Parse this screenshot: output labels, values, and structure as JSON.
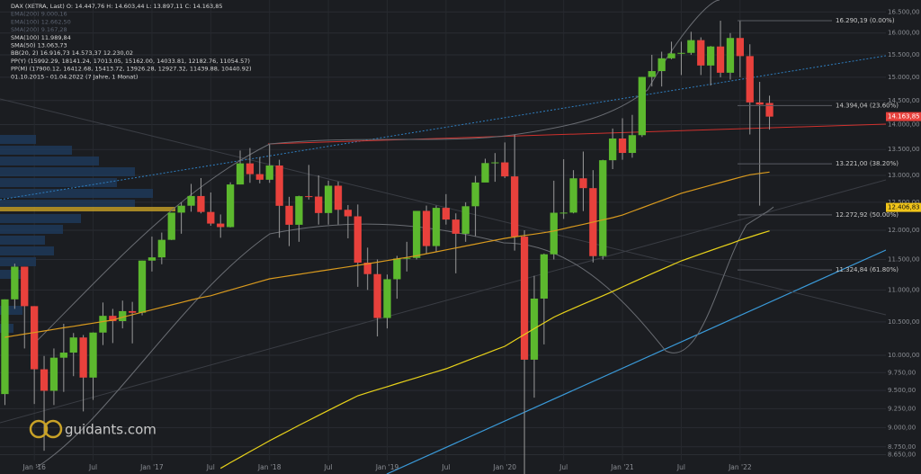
{
  "chart_data": {
    "type": "candlestick",
    "legend": [
      "DAX (XETRA, Last)  O: 14.447,76  H: 14.603,44  L: 13.897,11  C: 14.163,85",
      "EMA(200)  9.000,16",
      "EMA(100)  12.662,50",
      "SMA(200)  9.167,28",
      "SMA(100)  11.989,84",
      "SMA(50)  13.063,73",
      "BB(20, 2)  16.916,73  14.573,37  12.230,02",
      "PP(Y)  (15992.29, 18141.24, 17013.05, 15162.00, 14033.81, 12182.76, 11054.57)",
      "PP(M)  (17900.12, 16412.68, 15413.72, 13926.28, 12927.32, 11439.88, 10440.92)",
      "01.10.2015 - 01.04.2022  (7 Jahre, 1 Monat)"
    ],
    "logo": "guidants.com",
    "categories": [
      null,
      null,
      null,
      "Jan '16",
      null,
      null,
      null,
      null,
      null,
      "Jul",
      null,
      null,
      null,
      null,
      null,
      "Jan '17",
      null,
      null,
      null,
      null,
      null,
      "Jul",
      null,
      null,
      null,
      null,
      null,
      "Jan '18",
      null,
      null,
      null,
      null,
      null,
      "Jul",
      null,
      null,
      null,
      null,
      null,
      "Jan '19",
      null,
      null,
      null,
      null,
      null,
      "Jul",
      null,
      null,
      null,
      null,
      null,
      "Jan '20",
      null,
      null,
      null,
      null,
      null,
      "Jul",
      null,
      null,
      null,
      null,
      null,
      "Jan '21",
      null,
      null,
      null,
      null,
      null,
      "Jul",
      null,
      null,
      null,
      null,
      null,
      "Jan '22",
      null,
      null,
      null
    ],
    "open": [
      9450,
      10850,
      11380,
      10743,
      9798,
      9495,
      9965,
      10039,
      10263,
      9680,
      10337,
      10592,
      10511,
      10665,
      10640,
      11481,
      11535,
      11834,
      12313,
      12438,
      12615,
      12325,
      12118,
      12056,
      12829,
      13230,
      13024,
      12918,
      13189,
      12436,
      12097,
      12612,
      12605,
      12306,
      12806,
      12364,
      12247,
      11447,
      11257,
      10559,
      11173,
      11516,
      11526,
      12344,
      11727,
      12399,
      12189,
      11939,
      12428,
      12866,
      13236,
      13249,
      12981,
      11890,
      9936,
      10862,
      11587,
      12311,
      12313,
      12945,
      12761,
      11556,
      13291,
      13719,
      13433,
      13786,
      15008,
      15136,
      15421,
      15531,
      15544,
      15835,
      15260,
      15689,
      15100,
      15885,
      15471,
      14461,
      14447.76
    ],
    "high": [
      10850,
      11430,
      11380,
      10743,
      9990,
      10100,
      10470,
      10330,
      10300,
      10340,
      10800,
      10700,
      10830,
      10810,
      11480,
      11890,
      11960,
      12310,
      12500,
      12840,
      12950,
      12680,
      12280,
      12870,
      13480,
      13530,
      13350,
      13600,
      13300,
      12600,
      12620,
      13200,
      13000,
      12900,
      12880,
      12450,
      12460,
      11700,
      11500,
      11250,
      11560,
      11800,
      12300,
      12440,
      12440,
      12650,
      12300,
      12500,
      12990,
      13320,
      13430,
      13640,
      13795,
      12000,
      11230,
      11600,
      12900,
      13310,
      13100,
      13460,
      13100,
      13300,
      13920,
      14130,
      14200,
      15010,
      15500,
      15570,
      15800,
      15800,
      16030,
      15900,
      15700,
      16290,
      16000,
      16285,
      15740,
      14900,
      14603.44
    ],
    "low": [
      9300,
      10700,
      10100,
      9314,
      8700,
      9300,
      9480,
      9700,
      9214,
      9370,
      10150,
      10180,
      10400,
      10175,
      10600,
      11300,
      11420,
      11830,
      11940,
      12330,
      12300,
      12080,
      11870,
      12050,
      12830,
      12860,
      12850,
      12860,
      11870,
      11726,
      11800,
      12550,
      12100,
      12100,
      12100,
      11860,
      11050,
      11000,
      10279,
      10400,
      10860,
      11300,
      11500,
      11600,
      11620,
      12100,
      11270,
      11800,
      11900,
      12900,
      12880,
      12950,
      11650,
      8256,
      9400,
      10160,
      11500,
      12200,
      12300,
      12340,
      11450,
      11500,
      13120,
      13300,
      13340,
      13750,
      14800,
      14800,
      15400,
      15050,
      15500,
      15050,
      14820,
      15000,
      14950,
      15000,
      13800,
      12439,
      13897.11
    ],
    "close": [
      10850,
      11380,
      10743,
      9798,
      9495,
      9965,
      10039,
      10263,
      9680,
      10337,
      10592,
      10511,
      10665,
      10640,
      11481,
      11535,
      11834,
      12313,
      12438,
      12615,
      12325,
      12118,
      12056,
      12829,
      13230,
      13024,
      12918,
      13189,
      12436,
      12097,
      12612,
      12605,
      12306,
      12806,
      12364,
      12247,
      11447,
      11257,
      10559,
      11173,
      11516,
      11526,
      12344,
      11727,
      12399,
      12189,
      11939,
      12428,
      12866,
      13236,
      13249,
      12981,
      11890,
      9936,
      10862,
      11587,
      12311,
      12313,
      12945,
      12761,
      11556,
      13291,
      13719,
      13433,
      13786,
      15008,
      15136,
      15421,
      15531,
      15544,
      15835,
      15260,
      15689,
      15100,
      15885,
      15471,
      14461,
      14415,
      14163.85
    ],
    "up_color": "#5cb82e",
    "down_color": "#e8413c",
    "series": [
      {
        "name": "SMA(50)",
        "color": "#d99a1e",
        "values": [
          10266,
          10290,
          10314,
          10337,
          10361,
          10385,
          10409,
          10432,
          10456,
          10480,
          10504,
          10527,
          10570,
          10609,
          10647,
          10686,
          10724,
          10763,
          10801,
          10840,
          10878,
          10908,
          10953,
          10999,
          11044,
          11089,
          11135,
          11180,
          11205,
          11229,
          11254,
          11279,
          11303,
          11328,
          11353,
          11377,
          11402,
          11428,
          11455,
          11481,
          11508,
          11534,
          11563,
          11596,
          11629,
          11662,
          11695,
          11728,
          11761,
          11794,
          11827,
          11860,
          11884,
          11909,
          11933,
          11958,
          11988,
          12027,
          12066,
          12105,
          12145,
          12184,
          12223,
          12269,
          12335,
          12401,
          12467,
          12533,
          12599,
          12665,
          12715,
          12765,
          12815,
          12865,
          12915,
          12965,
          13013,
          13038,
          13063
        ]
      },
      {
        "name": "SMA(100)",
        "color": "#e8d21a",
        "values": [
          null,
          null,
          null,
          null,
          null,
          null,
          null,
          null,
          null,
          null,
          null,
          null,
          null,
          null,
          null,
          null,
          null,
          null,
          null,
          null,
          null,
          null,
          8480,
          8550,
          8619,
          8689,
          8758,
          8828,
          8895,
          8961,
          9028,
          9094,
          9161,
          9227,
          9294,
          9360,
          9427,
          9469,
          9511,
          9553,
          9595,
          9637,
          9679,
          9721,
          9763,
          9805,
          9860,
          9914,
          9969,
          10023,
          10078,
          10132,
          10220,
          10308,
          10396,
          10484,
          10572,
          10642,
          10709,
          10775,
          10842,
          10908,
          10975,
          11049,
          11120,
          11191,
          11263,
          11334,
          11405,
          11477,
          11535,
          11593,
          11651,
          11709,
          11767,
          11830,
          11883,
          11937,
          11990
        ]
      }
    ],
    "annotations": [
      {
        "label": "16.290,19 (0.00%)",
        "value": 16290.19
      },
      {
        "label": "14.394,04 (23.60%)",
        "value": 14394.04
      },
      {
        "label": "13.221,00 (38.20%)",
        "value": 13221.0
      },
      {
        "label": "12.272,92 (50.00%)",
        "value": 12272.92
      },
      {
        "label": "11.324,84 (61.80%)",
        "value": 11324.84
      }
    ],
    "price_labels": [
      {
        "value": 14163.85,
        "label": "14.163,85",
        "color": "#e8413c"
      },
      {
        "value": 12406.83,
        "label": "12.406,83",
        "color": "#f0c419"
      }
    ],
    "log_scale": true,
    "grid": true,
    "ylim": [
      8410,
      16790
    ],
    "yticks": [
      {
        "value": 8650,
        "label": "8.650,00"
      },
      {
        "value": 8750,
        "label": "8.750,00"
      },
      {
        "value": 9000,
        "label": "9.000,00"
      },
      {
        "value": 9250,
        "label": "9.250,00"
      },
      {
        "value": 9500,
        "label": "9.500,00"
      },
      {
        "value": 9750,
        "label": "9.750,00"
      },
      {
        "value": 10000,
        "label": "10.000,00"
      },
      {
        "value": 10500,
        "label": "10.500,00"
      },
      {
        "value": 11000,
        "label": "11.000,00"
      },
      {
        "value": 11500,
        "label": "11.500,00"
      },
      {
        "value": 12000,
        "label": "12.000,00"
      },
      {
        "value": 12500,
        "label": "12.500,00"
      },
      {
        "value": 13000,
        "label": "13.000,00"
      },
      {
        "value": 13500,
        "label": "13.500,00"
      },
      {
        "value": 14000,
        "label": "14.000,00"
      },
      {
        "value": 14500,
        "label": "14.500,00"
      },
      {
        "value": 15000,
        "label": "15.000,00"
      },
      {
        "value": 15500,
        "label": "15.500,00"
      },
      {
        "value": 16000,
        "label": "16.000,00"
      },
      {
        "value": 16500,
        "label": "16.500,00"
      }
    ]
  }
}
